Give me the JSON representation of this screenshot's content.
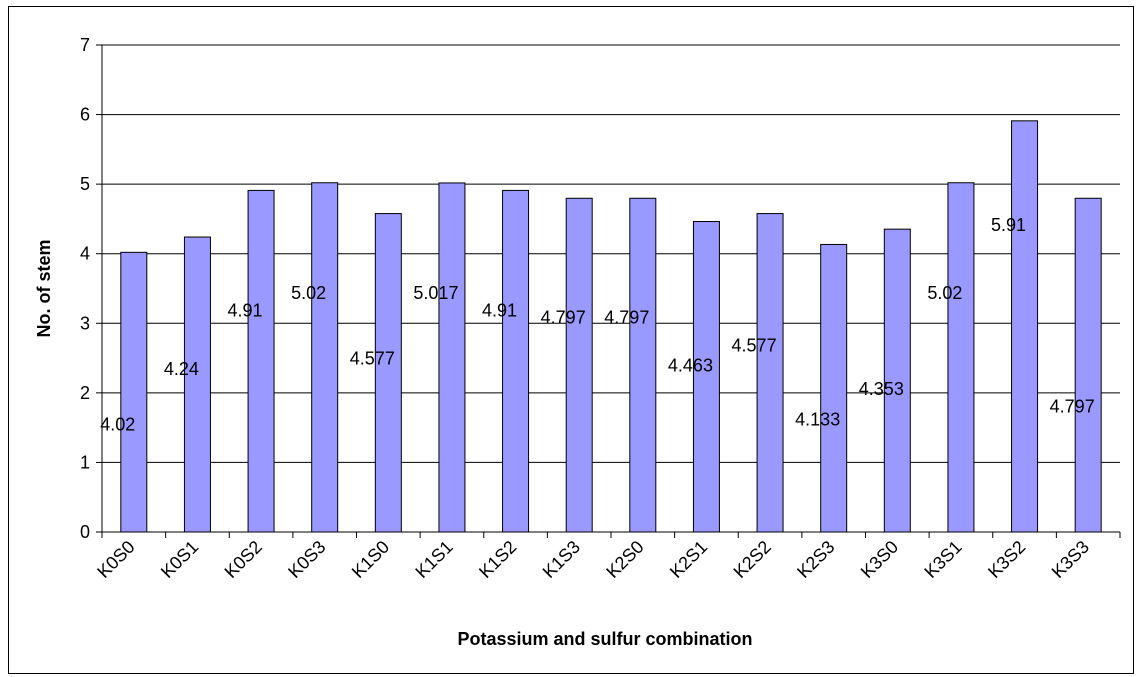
{
  "chart_data": {
    "type": "bar",
    "title": "",
    "xlabel": "Potassium and sulfur combination",
    "ylabel": "No. of stem",
    "ylim": [
      0,
      7
    ],
    "yticks": [
      "0",
      "1",
      "2",
      "3",
      "4",
      "5",
      "6",
      "7"
    ],
    "grid": true,
    "legend": "none",
    "bar_color": "#9999ff",
    "categories": [
      "K0S0",
      "K0S1",
      "K0S2",
      "K0S3",
      "K1S0",
      "K1S1",
      "K1S2",
      "K1S3",
      "K2S0",
      "K2S1",
      "K2S2",
      "K2S3",
      "K3S0",
      "K3S1",
      "K3S2",
      "K3S3"
    ],
    "values": [
      4.02,
      4.24,
      4.91,
      5.02,
      4.577,
      5.017,
      4.91,
      4.797,
      4.797,
      4.463,
      4.577,
      4.133,
      4.353,
      5.02,
      5.91,
      4.797
    ],
    "data_labels": [
      "4.02",
      "4.24",
      "4.91",
      "5.02",
      "4.577",
      "5.017",
      "4.91",
      "4.797",
      "4.797",
      "4.463",
      "4.577",
      "4.133",
      "4.353",
      "5.02",
      "5.91",
      "4.797"
    ]
  }
}
